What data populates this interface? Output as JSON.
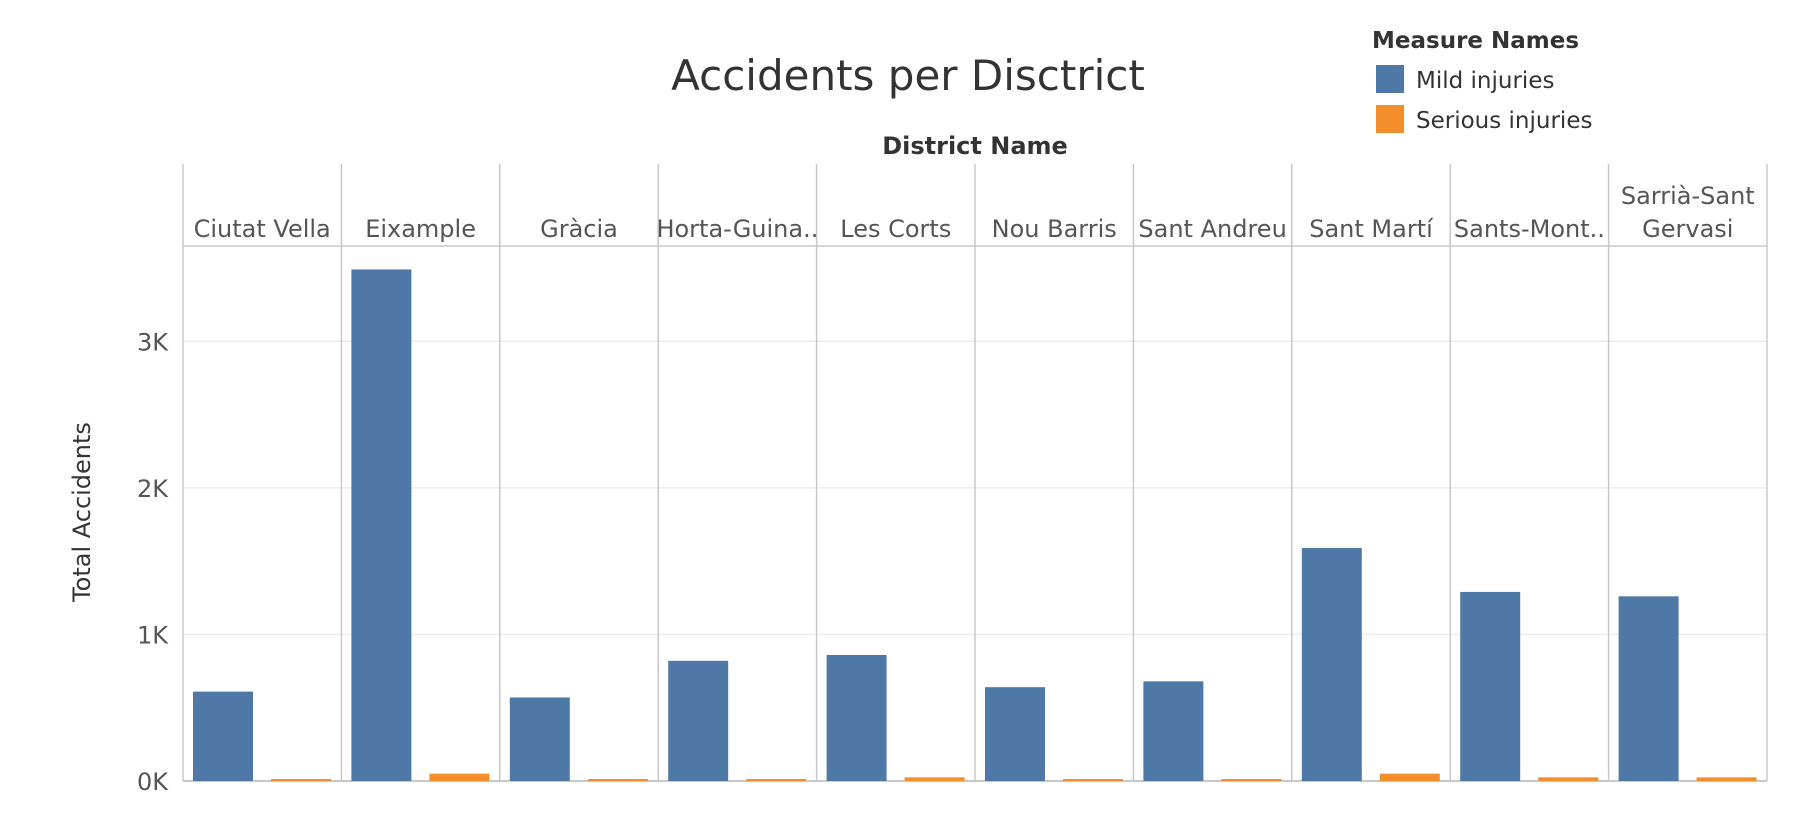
{
  "chart_data": {
    "type": "bar",
    "title": "Accidents per Disctrict",
    "column_header": "District Name",
    "ylabel": "Total Accidents",
    "xlabel": "",
    "categories": [
      "Ciutat Vella",
      "Eixample",
      "Gràcia",
      "Horta-Guina..",
      "Les Corts",
      "Nou Barris",
      "Sant Andreu",
      "Sant Martí",
      "Sants-Mont..",
      "Sarrià-Sant Gervasi"
    ],
    "category_label_lines": [
      [
        "Ciutat Vella"
      ],
      [
        "Eixample"
      ],
      [
        "Gràcia"
      ],
      [
        "Horta-Guina.."
      ],
      [
        "Les Corts"
      ],
      [
        "Nou Barris"
      ],
      [
        "Sant Andreu"
      ],
      [
        "Sant Martí"
      ],
      [
        "Sants-Mont.."
      ],
      [
        "Sarrià-Sant",
        "Gervasi"
      ]
    ],
    "series": [
      {
        "name": "Mild injuries",
        "color": "#4e79a7",
        "values": [
          610,
          3490,
          570,
          820,
          860,
          640,
          680,
          1590,
          1290,
          1260
        ]
      },
      {
        "name": "Serious injuries",
        "color": "#f28e2b",
        "values": [
          12,
          50,
          12,
          12,
          25,
          12,
          12,
          50,
          25,
          25
        ]
      }
    ],
    "ylim": [
      0,
      3650
    ],
    "yticks": [
      0,
      1000,
      2000,
      3000
    ],
    "ytick_labels": [
      "0K",
      "1K",
      "2K",
      "3K"
    ],
    "grid": true,
    "legend": {
      "title": "Measure Names",
      "position": "top-right",
      "items": [
        "Mild injuries",
        "Serious injuries"
      ]
    }
  }
}
